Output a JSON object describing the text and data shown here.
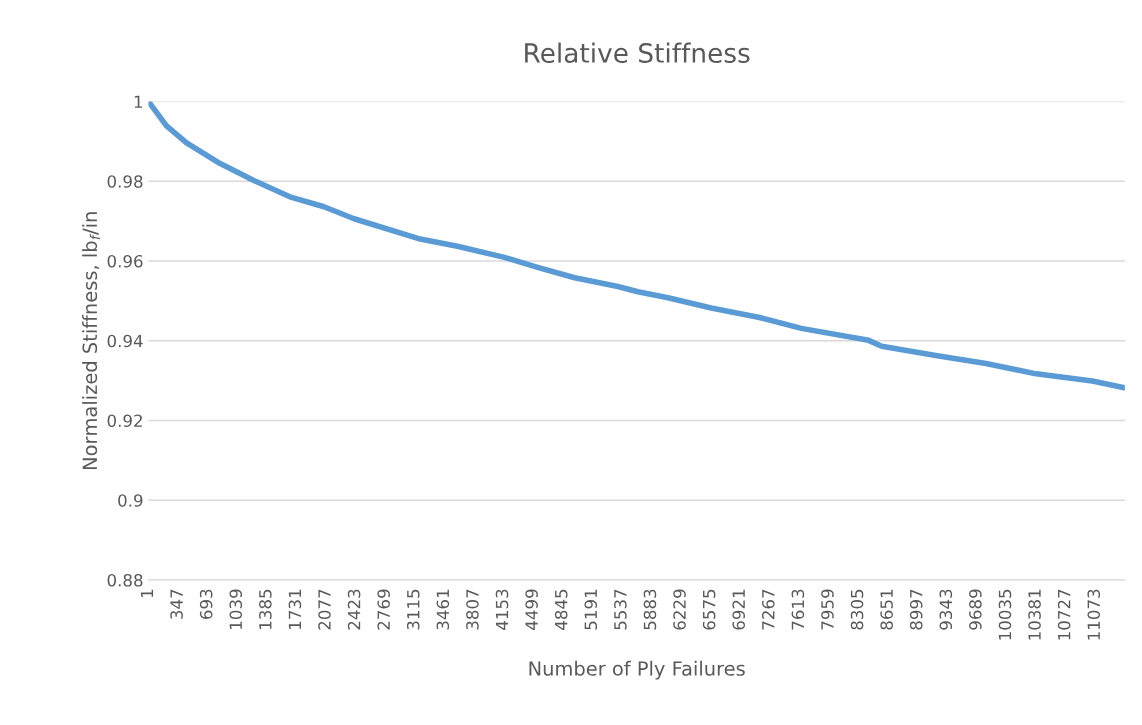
{
  "chart_data": {
    "type": "line",
    "title": "Relative Stiffness",
    "xlabel": "Number of Ply Failures",
    "ylabel": "Normalized Stiffness, lb$_{f}$/in",
    "x": [
      1,
      212,
      447,
      834,
      1233,
      1655,
      2054,
      2406,
      3180,
      3614,
      4165,
      4552,
      4986,
      5491,
      5725,
      6077,
      6582,
      7133,
      7637,
      8423,
      8576,
      9209,
      9796,
      10382,
      11039,
      11414
    ],
    "series": [
      {
        "color": "#5b9bd5",
        "values": [
          1.0,
          0.9939,
          0.9896,
          0.9845,
          0.9802,
          0.9761,
          0.9736,
          0.9706,
          0.9655,
          0.9637,
          0.9609,
          0.9584,
          0.9558,
          0.9536,
          0.9523,
          0.9508,
          0.9482,
          0.9459,
          0.9431,
          0.9401,
          0.9386,
          0.9363,
          0.9343,
          0.9317,
          0.9299,
          0.9282
        ]
      }
    ],
    "xlim": [
      1,
      11420
    ],
    "xticks": [
      1,
      347,
      693,
      1039,
      1385,
      1731,
      2077,
      2423,
      2769,
      3115,
      3461,
      3807,
      4153,
      4499,
      4845,
      5191,
      5537,
      5883,
      6229,
      6575,
      6921,
      7267,
      7613,
      7959,
      8305,
      8651,
      8997,
      9343,
      9689,
      10035,
      10381,
      10727,
      11073
    ],
    "ylim": [
      0.88,
      1
    ],
    "yticks": [
      0.88,
      0.9,
      0.92,
      0.94,
      0.96,
      0.98,
      1
    ],
    "grid": "y",
    "marker": "none",
    "line_style": "solid"
  }
}
